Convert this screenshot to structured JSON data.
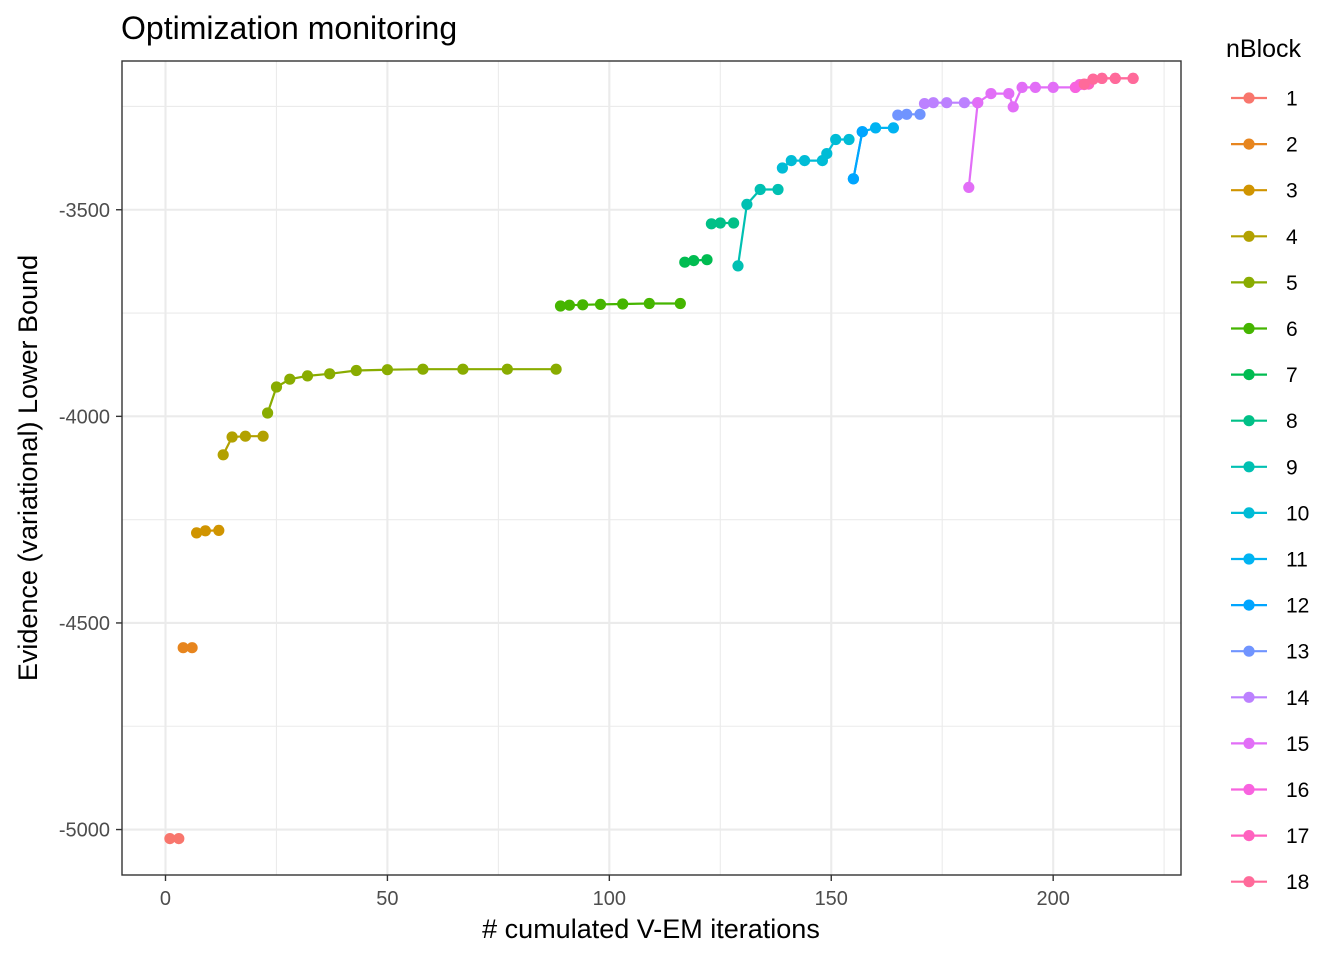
{
  "chart_data": {
    "type": "line",
    "title": "Optimization monitoring",
    "xlabel": "# cumulated V-EM iterations",
    "ylabel": "Evidence (variational) Lower Bound",
    "xlim": [
      -9.8,
      228.8
    ],
    "ylim": [
      -5110,
      -3140
    ],
    "x_ticks": [
      0,
      50,
      100,
      150,
      200
    ],
    "x_tick_labels": [
      "0",
      "50",
      "100",
      "150",
      "200"
    ],
    "y_ticks": [
      -5000,
      -4500,
      -4000,
      -3500
    ],
    "y_tick_labels": [
      "-5000",
      "-4500",
      "-4000",
      "-3500"
    ],
    "grid": true,
    "legend": {
      "title": "nBlock",
      "position": "right"
    },
    "series": [
      {
        "name": "1",
        "color": "#F8766D",
        "x": [
          1,
          3
        ],
        "y": [
          -5022,
          -5022
        ]
      },
      {
        "name": "2",
        "color": "#E7851E",
        "x": [
          4,
          6
        ],
        "y": [
          -4560,
          -4560
        ]
      },
      {
        "name": "3",
        "color": "#D09400",
        "x": [
          7,
          9,
          12
        ],
        "y": [
          -4282,
          -4277,
          -4276
        ]
      },
      {
        "name": "4",
        "color": "#B2A100",
        "x": [
          13,
          15,
          18,
          22
        ],
        "y": [
          -4093,
          -4050,
          -4048,
          -4048
        ]
      },
      {
        "name": "5",
        "color": "#89AC00",
        "x": [
          23,
          25,
          28,
          32,
          37,
          43,
          50,
          58,
          67,
          77,
          88
        ],
        "y": [
          -3992,
          -3929,
          -3910,
          -3902,
          -3897,
          -3889,
          -3887,
          -3886,
          -3886,
          -3886,
          -3886
        ]
      },
      {
        "name": "6",
        "color": "#45B500",
        "x": [
          89,
          91,
          94,
          98,
          103,
          109,
          116
        ],
        "y": [
          -3733,
          -3731,
          -3730,
          -3729,
          -3728,
          -3727,
          -3727
        ]
      },
      {
        "name": "7",
        "color": "#00BC51",
        "x": [
          117,
          119,
          122
        ],
        "y": [
          -3627,
          -3623,
          -3621
        ]
      },
      {
        "name": "8",
        "color": "#00C087",
        "x": [
          123,
          125,
          128
        ],
        "y": [
          -3534,
          -3532,
          -3532
        ]
      },
      {
        "name": "9",
        "color": "#00C0B2",
        "x": [
          129,
          131,
          134,
          138
        ],
        "y": [
          -3636,
          -3487,
          -3451,
          -3451
        ]
      },
      {
        "name": "10",
        "color": "#00BCD6",
        "x": [
          139,
          141,
          144,
          148,
          149,
          151,
          154
        ],
        "y": [
          -3399,
          -3381,
          -3381,
          -3381,
          -3364,
          -3330,
          -3330
        ]
      },
      {
        "name": "11",
        "color": "#00B3F2",
        "x": [
          155,
          157,
          160,
          164
        ],
        "y": [
          -3425,
          -3311,
          -3302,
          -3302
        ]
      },
      {
        "name": "12",
        "color": "#00A5FF",
        "x": [
          155,
          157
        ],
        "y": [
          -3425,
          -3311
        ]
      },
      {
        "name": "13",
        "color": "#7094FF",
        "x": [
          165,
          167,
          170
        ],
        "y": [
          -3271,
          -3269,
          -3269
        ]
      },
      {
        "name": "14",
        "color": "#BC81FF",
        "x": [
          171,
          173,
          176,
          180,
          183
        ],
        "y": [
          -3243,
          -3241,
          -3241,
          -3241,
          -3241
        ]
      },
      {
        "name": "15",
        "color": "#E26EF7",
        "x": [
          181,
          183,
          186,
          190,
          191,
          193,
          196,
          200,
          205
        ],
        "y": [
          -3446,
          -3241,
          -3219,
          -3219,
          -3251,
          -3204,
          -3204,
          -3204,
          -3204
        ]
      },
      {
        "name": "16",
        "color": "#F863DF",
        "x": [
          205,
          206,
          207
        ],
        "y": [
          -3204,
          -3197,
          -3197
        ]
      },
      {
        "name": "17",
        "color": "#FF62BF",
        "x": [
          208,
          209,
          211,
          214,
          218
        ],
        "y": [
          -3196,
          -3184,
          -3182,
          -3182,
          -3182
        ]
      },
      {
        "name": "18",
        "color": "#FF6A9A",
        "x": [
          207,
          209,
          211,
          214,
          218
        ],
        "y": [
          -3196,
          -3184,
          -3182,
          -3182,
          -3182
        ]
      }
    ]
  }
}
